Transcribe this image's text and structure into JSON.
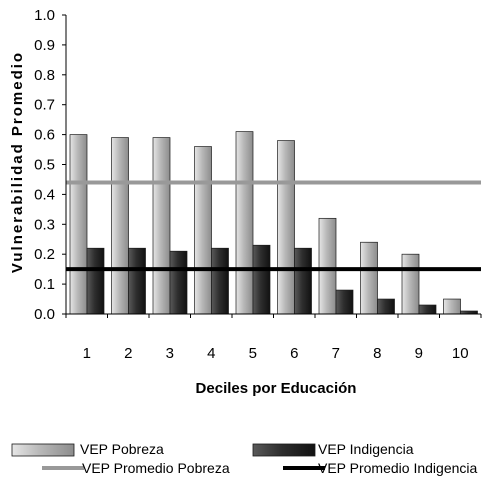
{
  "chart_data": {
    "type": "bar",
    "xlabel": "Deciles por Educación",
    "ylabel": "Vulnerabilidad Promedio",
    "ylim": [
      0,
      1.0
    ],
    "y_ticks": [
      "0.0",
      "0.1",
      "0.2",
      "0.3",
      "0.4",
      "0.5",
      "0.6",
      "0.7",
      "0.8",
      "0.9",
      "1.0"
    ],
    "categories": [
      "1",
      "2",
      "3",
      "4",
      "5",
      "6",
      "7",
      "8",
      "9",
      "10"
    ],
    "series": [
      {
        "name": "VEP Pobreza",
        "kind": "bar",
        "color": "#b3b3b3",
        "values": [
          0.6,
          0.59,
          0.59,
          0.56,
          0.61,
          0.58,
          0.32,
          0.24,
          0.2,
          0.05
        ]
      },
      {
        "name": "VEP Indigencia",
        "kind": "bar",
        "color": "#2b2b2b",
        "values": [
          0.22,
          0.22,
          0.21,
          0.22,
          0.23,
          0.22,
          0.08,
          0.05,
          0.03,
          0.01
        ]
      },
      {
        "name": "VEP Promedio Pobreza",
        "kind": "line",
        "color": "#999999",
        "value": 0.44
      },
      {
        "name": "VEP Promedio Indigencia",
        "kind": "line",
        "color": "#000000",
        "value": 0.15
      }
    ],
    "grid": false,
    "legend": "bottom"
  }
}
